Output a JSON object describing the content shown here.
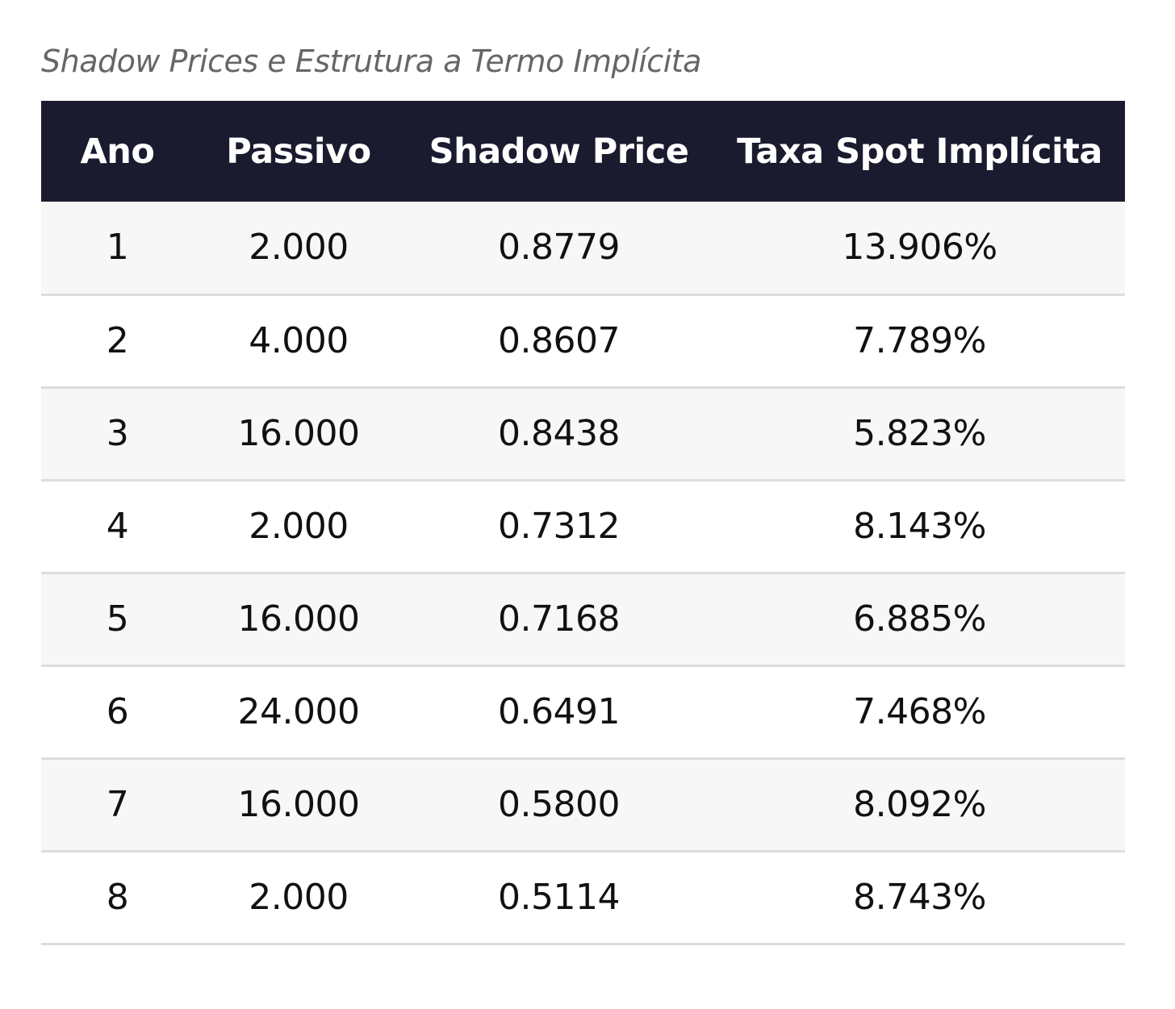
{
  "caption": "Shadow Prices e Estrutura a Termo Implícita",
  "table": {
    "headers": [
      "Ano",
      "Passivo",
      "Shadow Price",
      "Taxa Spot Implícita"
    ],
    "rows": [
      [
        "1",
        "2.000",
        "0.8779",
        "13.906%"
      ],
      [
        "2",
        "4.000",
        "0.8607",
        "7.789%"
      ],
      [
        "3",
        "16.000",
        "0.8438",
        "5.823%"
      ],
      [
        "4",
        "2.000",
        "0.7312",
        "8.143%"
      ],
      [
        "5",
        "16.000",
        "0.7168",
        "6.885%"
      ],
      [
        "6",
        "24.000",
        "0.6491",
        "7.468%"
      ],
      [
        "7",
        "16.000",
        "0.5800",
        "8.092%"
      ],
      [
        "8",
        "2.000",
        "0.5114",
        "8.743%"
      ]
    ]
  },
  "colors": {
    "header_bg": "#1b1b2f",
    "header_text": "#ffffff",
    "row_alt_bg": "#f7f7f7",
    "row_border": "#dddddd",
    "caption_text": "#666666"
  }
}
